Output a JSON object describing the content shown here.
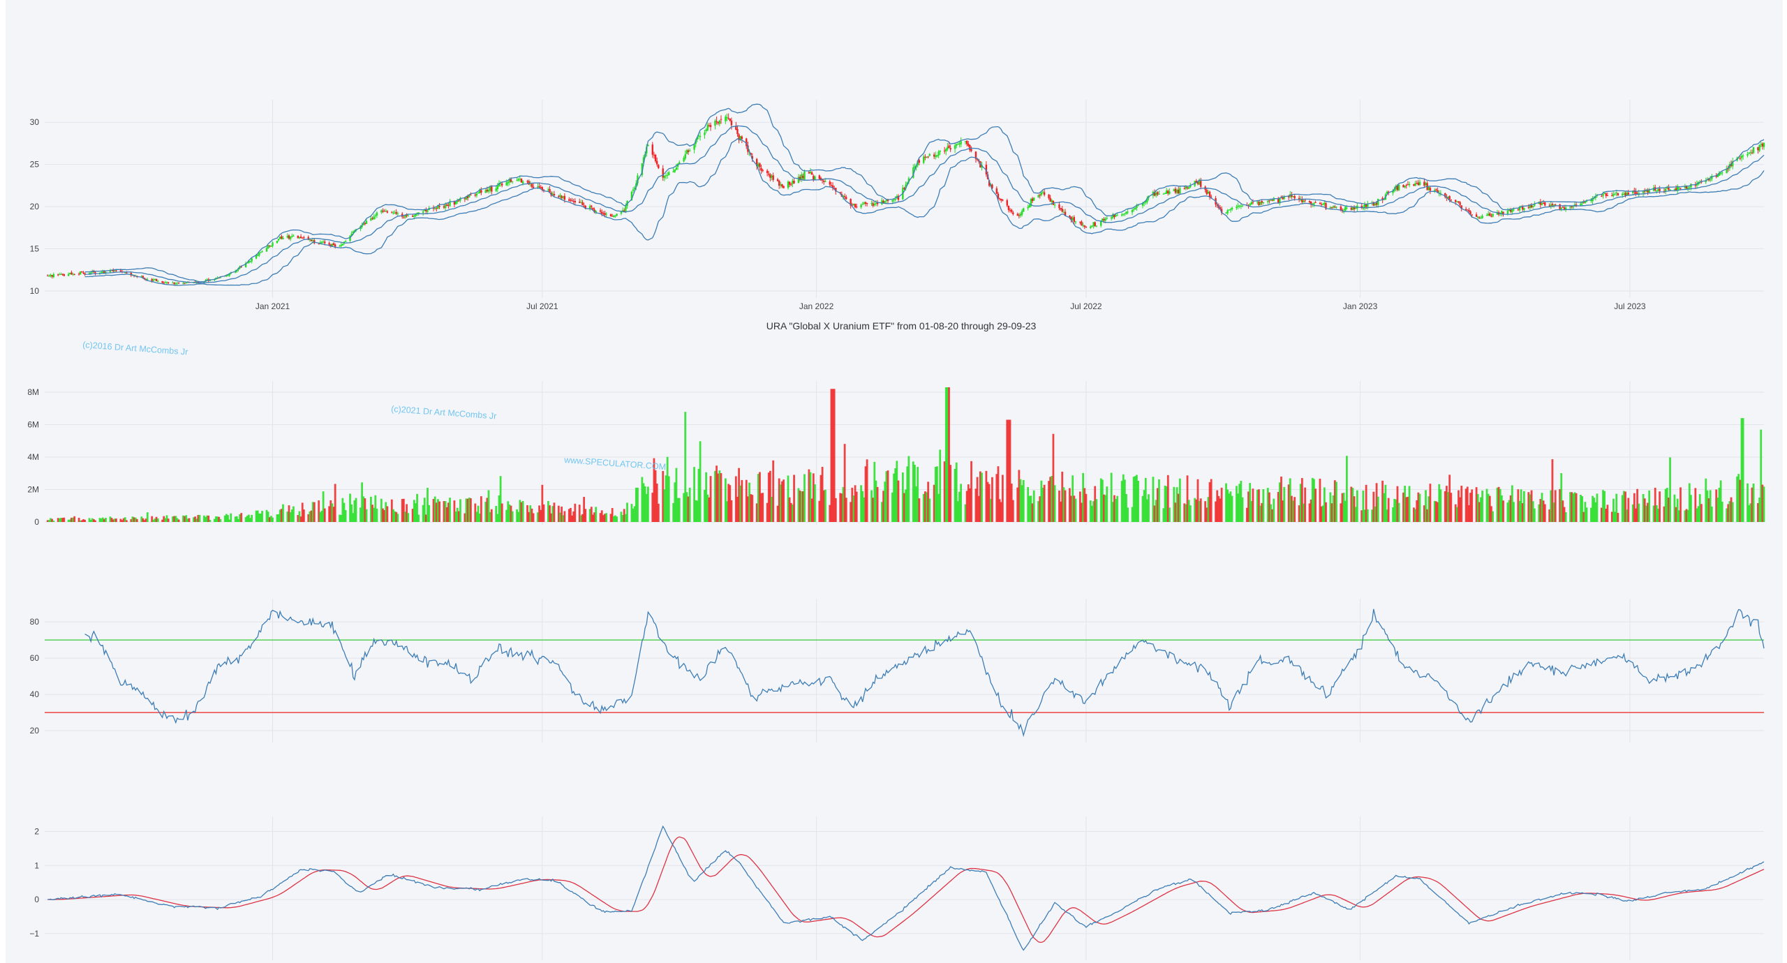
{
  "figure": {
    "title": "URA \"Global X Uranium ETF\" from 01-08-20 through 29-09-23",
    "watermarks": [
      "(c)2016 Dr Art McCombs Jr",
      "(c)2021 Dr Art McCombs Jr",
      "www.SPECULATOR.COM"
    ]
  },
  "colors": {
    "background": "#f4f5f9",
    "grid": "#e2e4ec",
    "up": "#22dd22",
    "down": "#ee2222",
    "line": "#3d7db5",
    "signal": "#dd3344",
    "rsi_upper": "#33cc33",
    "rsi_lower": "#ee3333"
  },
  "x_ticks": [
    "Jan 2021",
    "Jul 2021",
    "Jan 2022",
    "Jul 2022",
    "Jan 2023",
    "Jul 2023"
  ],
  "chart_data": [
    {
      "type": "candlestick",
      "name": "price",
      "x_range": [
        "2020-08-01",
        "2023-09-29"
      ],
      "ylim": [
        9.5,
        32.5
      ],
      "yticks": [
        10,
        15,
        20,
        25,
        30
      ],
      "x_ticks": [
        "Jan 2021",
        "Jul 2021",
        "Jan 2022",
        "Jul 2022",
        "Jan 2023",
        "Jul 2023"
      ],
      "indicators": [
        "Bollinger upper band",
        "Bollinger middle band",
        "Bollinger lower band"
      ],
      "close_path": [
        [
          "2020-08-01",
          11.8
        ],
        [
          "2020-09-01",
          12.2
        ],
        [
          "2020-09-20",
          12.4
        ],
        [
          "2020-10-10",
          11.3
        ],
        [
          "2020-10-25",
          10.9
        ],
        [
          "2020-11-10",
          11.0
        ],
        [
          "2020-12-01",
          11.8
        ],
        [
          "2020-12-20",
          14.0
        ],
        [
          "2021-01-05",
          16.3
        ],
        [
          "2021-01-15",
          16.5
        ],
        [
          "2021-02-01",
          15.8
        ],
        [
          "2021-02-15",
          15.2
        ],
        [
          "2021-03-01",
          17.8
        ],
        [
          "2021-03-15",
          19.4
        ],
        [
          "2021-04-01",
          18.8
        ],
        [
          "2021-04-15",
          19.6
        ],
        [
          "2021-05-01",
          20.4
        ],
        [
          "2021-05-15",
          21.4
        ],
        [
          "2021-06-01",
          22.5
        ],
        [
          "2021-06-15",
          23.4
        ],
        [
          "2021-07-01",
          22.0
        ],
        [
          "2021-07-15",
          21.0
        ],
        [
          "2021-08-01",
          20.0
        ],
        [
          "2021-08-15",
          18.8
        ],
        [
          "2021-08-25",
          19.6
        ],
        [
          "2021-09-01",
          22.5
        ],
        [
          "2021-09-10",
          27.5
        ],
        [
          "2021-09-20",
          23.5
        ],
        [
          "2021-10-01",
          25.0
        ],
        [
          "2021-10-15",
          28.8
        ],
        [
          "2021-11-01",
          30.8
        ],
        [
          "2021-11-10",
          28.2
        ],
        [
          "2021-11-25",
          24.5
        ],
        [
          "2021-12-10",
          22.2
        ],
        [
          "2021-12-25",
          24.0
        ],
        [
          "2022-01-10",
          22.6
        ],
        [
          "2022-01-25",
          20.2
        ],
        [
          "2022-02-10",
          20.4
        ],
        [
          "2022-02-25",
          21.0
        ],
        [
          "2022-03-10",
          25.4
        ],
        [
          "2022-03-25",
          26.5
        ],
        [
          "2022-04-10",
          27.8
        ],
        [
          "2022-04-20",
          25.2
        ],
        [
          "2022-05-01",
          21.5
        ],
        [
          "2022-05-15",
          18.8
        ],
        [
          "2022-06-01",
          21.8
        ],
        [
          "2022-06-15",
          19.4
        ],
        [
          "2022-07-01",
          17.5
        ],
        [
          "2022-07-15",
          18.6
        ],
        [
          "2022-08-01",
          19.5
        ],
        [
          "2022-08-15",
          21.5
        ],
        [
          "2022-09-01",
          21.8
        ],
        [
          "2022-09-15",
          22.8
        ],
        [
          "2022-10-01",
          19.2
        ],
        [
          "2022-10-15",
          20.2
        ],
        [
          "2022-11-01",
          20.6
        ],
        [
          "2022-11-15",
          21.2
        ],
        [
          "2022-12-01",
          20.4
        ],
        [
          "2022-12-20",
          19.6
        ],
        [
          "2023-01-10",
          20.2
        ],
        [
          "2023-01-25",
          22.3
        ],
        [
          "2023-02-10",
          22.8
        ],
        [
          "2023-03-01",
          21.2
        ],
        [
          "2023-03-20",
          18.7
        ],
        [
          "2023-04-10",
          19.4
        ],
        [
          "2023-05-01",
          20.3
        ],
        [
          "2023-05-20",
          19.8
        ],
        [
          "2023-06-10",
          21.3
        ],
        [
          "2023-07-01",
          21.5
        ],
        [
          "2023-07-20",
          22.0
        ],
        [
          "2023-08-10",
          22.3
        ],
        [
          "2023-08-30",
          23.8
        ],
        [
          "2023-09-15",
          26.0
        ],
        [
          "2023-09-29",
          27.6
        ]
      ]
    },
    {
      "type": "bar",
      "name": "volume",
      "ylim": [
        0,
        8600000
      ],
      "yticks": [
        0,
        2000000,
        4000000,
        6000000,
        8000000
      ],
      "ytick_labels": [
        "0",
        "2M",
        "4M",
        "6M",
        "8M"
      ],
      "x_ticks": [
        "Jan 2021",
        "Jul 2021",
        "Jan 2022",
        "Jul 2022",
        "Jan 2023",
        "Jul 2023"
      ],
      "volume_level_path": [
        [
          "2020-08-01",
          150000
        ],
        [
          "2020-12-01",
          300000
        ],
        [
          "2021-01-15",
          700000
        ],
        [
          "2021-03-01",
          1000000
        ],
        [
          "2021-06-01",
          1000000
        ],
        [
          "2021-08-25",
          500000
        ],
        [
          "2021-09-10",
          2500000
        ],
        [
          "2021-11-15",
          2000000
        ],
        [
          "2022-03-10",
          2500000
        ],
        [
          "2022-06-01",
          2000000
        ],
        [
          "2023-01-01",
          1600000
        ],
        [
          "2023-07-01",
          1200000
        ],
        [
          "2023-09-29",
          2000000
        ]
      ],
      "notable_peaks": [
        [
          "2022-01-12",
          8200000
        ],
        [
          "2022-03-30",
          8300000
        ],
        [
          "2022-05-10",
          6300000
        ],
        [
          "2023-09-15",
          6400000
        ]
      ]
    },
    {
      "type": "line",
      "name": "RSI",
      "ylim": [
        15,
        92
      ],
      "yticks": [
        20,
        40,
        60,
        80
      ],
      "reference_lines": [
        70,
        30
      ],
      "x_ticks": [
        "Jan 2021",
        "Jul 2021",
        "Jan 2022",
        "Jul 2022",
        "Jan 2023",
        "Jul 2023"
      ],
      "path": [
        [
          "2020-08-28",
          72
        ],
        [
          "2020-09-05",
          72
        ],
        [
          "2020-09-20",
          48
        ],
        [
          "2020-10-10",
          38
        ],
        [
          "2020-10-25",
          25
        ],
        [
          "2020-11-10",
          30
        ],
        [
          "2020-11-25",
          55
        ],
        [
          "2020-12-10",
          60
        ],
        [
          "2020-12-22",
          72
        ],
        [
          "2021-01-01",
          86
        ],
        [
          "2021-01-20",
          80
        ],
        [
          "2021-02-10",
          78
        ],
        [
          "2021-02-25",
          50
        ],
        [
          "2021-03-10",
          70
        ],
        [
          "2021-03-25",
          68
        ],
        [
          "2021-04-15",
          58
        ],
        [
          "2021-05-01",
          56
        ],
        [
          "2021-05-15",
          48
        ],
        [
          "2021-06-01",
          65
        ],
        [
          "2021-06-20",
          62
        ],
        [
          "2021-07-10",
          58
        ],
        [
          "2021-07-25",
          38
        ],
        [
          "2021-08-10",
          32
        ],
        [
          "2021-08-30",
          38
        ],
        [
          "2021-09-10",
          85
        ],
        [
          "2021-09-25",
          62
        ],
        [
          "2021-10-15",
          48
        ],
        [
          "2021-11-01",
          68
        ],
        [
          "2021-11-20",
          38
        ],
        [
          "2021-12-10",
          45
        ],
        [
          "2022-01-10",
          48
        ],
        [
          "2022-01-25",
          32
        ],
        [
          "2022-02-10",
          48
        ],
        [
          "2022-03-10",
          62
        ],
        [
          "2022-03-28",
          70
        ],
        [
          "2022-04-15",
          75
        ],
        [
          "2022-05-01",
          40
        ],
        [
          "2022-05-20",
          20
        ],
        [
          "2022-06-10",
          48
        ],
        [
          "2022-07-01",
          36
        ],
        [
          "2022-07-20",
          55
        ],
        [
          "2022-08-10",
          70
        ],
        [
          "2022-09-01",
          58
        ],
        [
          "2022-09-20",
          54
        ],
        [
          "2022-10-05",
          34
        ],
        [
          "2022-10-25",
          58
        ],
        [
          "2022-11-15",
          58
        ],
        [
          "2022-12-10",
          40
        ],
        [
          "2023-01-01",
          66
        ],
        [
          "2023-01-10",
          84
        ],
        [
          "2023-01-30",
          56
        ],
        [
          "2023-02-20",
          48
        ],
        [
          "2023-03-15",
          25
        ],
        [
          "2023-04-05",
          42
        ],
        [
          "2023-04-25",
          58
        ],
        [
          "2023-05-15",
          52
        ],
        [
          "2023-06-05",
          56
        ],
        [
          "2023-06-25",
          62
        ],
        [
          "2023-07-15",
          48
        ],
        [
          "2023-08-10",
          52
        ],
        [
          "2023-09-01",
          68
        ],
        [
          "2023-09-12",
          86
        ],
        [
          "2023-09-25",
          78
        ],
        [
          "2023-09-29",
          66
        ]
      ]
    },
    {
      "type": "line",
      "name": "MACD",
      "ylim": [
        -1.7,
        2.4
      ],
      "yticks": [
        -1,
        0,
        1,
        2
      ],
      "ytick_labels": [
        "−1",
        "0",
        "1",
        "2"
      ],
      "x_ticks": [
        "Jan 2021",
        "Jul 2021",
        "Jan 2022",
        "Jul 2022",
        "Jan 2023",
        "Jul 2023"
      ],
      "path": [
        [
          "2020-08-01",
          0.0
        ],
        [
          "2020-09-20",
          0.15
        ],
        [
          "2020-10-25",
          -0.2
        ],
        [
          "2020-11-25",
          -0.25
        ],
        [
          "2020-12-25",
          0.1
        ],
        [
          "2021-01-20",
          0.88
        ],
        [
          "2021-02-10",
          0.85
        ],
        [
          "2021-02-28",
          0.2
        ],
        [
          "2021-03-20",
          0.75
        ],
        [
          "2021-04-20",
          0.35
        ],
        [
          "2021-05-20",
          0.3
        ],
        [
          "2021-06-20",
          0.6
        ],
        [
          "2021-07-10",
          0.55
        ],
        [
          "2021-08-10",
          -0.35
        ],
        [
          "2021-08-30",
          -0.35
        ],
        [
          "2021-09-20",
          2.15
        ],
        [
          "2021-10-10",
          0.5
        ],
        [
          "2021-11-01",
          1.45
        ],
        [
          "2021-11-10",
          1.1
        ],
        [
          "2021-12-10",
          -0.7
        ],
        [
          "2022-01-10",
          -0.5
        ],
        [
          "2022-02-01",
          -1.2
        ],
        [
          "2022-02-25",
          -0.4
        ],
        [
          "2022-04-01",
          0.95
        ],
        [
          "2022-04-25",
          0.8
        ],
        [
          "2022-05-20",
          -1.5
        ],
        [
          "2022-06-10",
          -0.1
        ],
        [
          "2022-07-01",
          -0.8
        ],
        [
          "2022-07-20",
          -0.4
        ],
        [
          "2022-08-20",
          0.35
        ],
        [
          "2022-09-10",
          0.6
        ],
        [
          "2022-10-05",
          -0.4
        ],
        [
          "2022-11-01",
          -0.3
        ],
        [
          "2022-12-01",
          0.2
        ],
        [
          "2022-12-25",
          -0.3
        ],
        [
          "2023-01-25",
          0.7
        ],
        [
          "2023-02-10",
          0.6
        ],
        [
          "2023-03-15",
          -0.7
        ],
        [
          "2023-04-15",
          -0.2
        ],
        [
          "2023-05-20",
          0.2
        ],
        [
          "2023-06-10",
          0.15
        ],
        [
          "2023-07-01",
          -0.05
        ],
        [
          "2023-07-25",
          0.2
        ],
        [
          "2023-08-20",
          0.3
        ],
        [
          "2023-09-29",
          1.1
        ]
      ],
      "signal_lag_days": 14
    }
  ]
}
